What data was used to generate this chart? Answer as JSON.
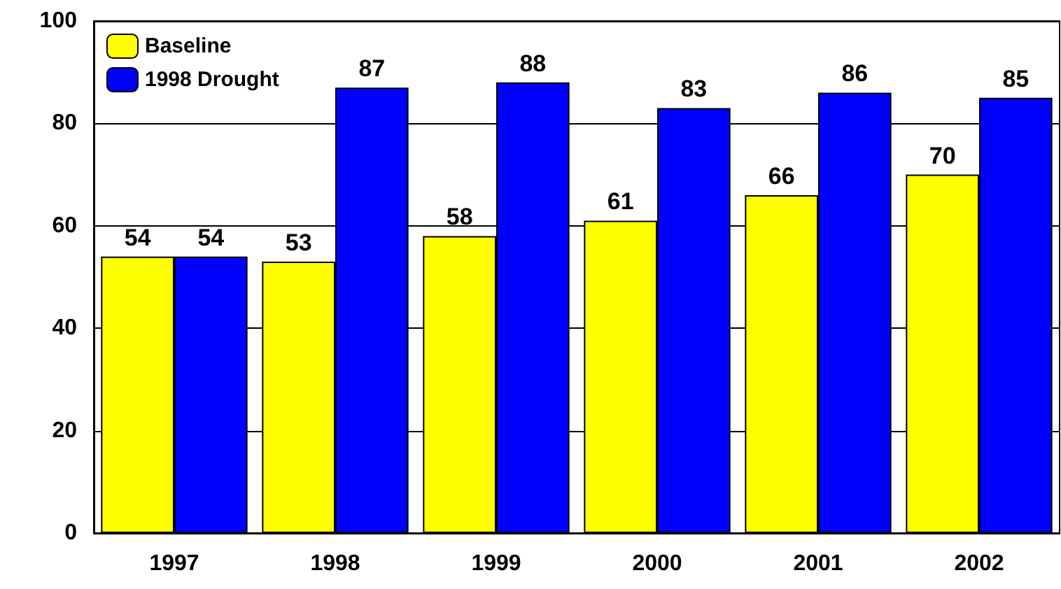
{
  "chart_data": {
    "type": "bar",
    "categories": [
      "1997",
      "1998",
      "1999",
      "2000",
      "2001",
      "2002"
    ],
    "series": [
      {
        "name": "Baseline",
        "color": "#ffff00",
        "values": [
          54,
          53,
          58,
          61,
          66,
          70
        ]
      },
      {
        "name": "1998 Drought",
        "color": "#0000ff",
        "values": [
          54,
          87,
          88,
          83,
          86,
          85
        ]
      }
    ],
    "ylim": [
      0,
      100
    ],
    "yticks": [
      0,
      20,
      40,
      60,
      80,
      100
    ],
    "grid": "y",
    "legend": "top left",
    "data_labels": true
  }
}
